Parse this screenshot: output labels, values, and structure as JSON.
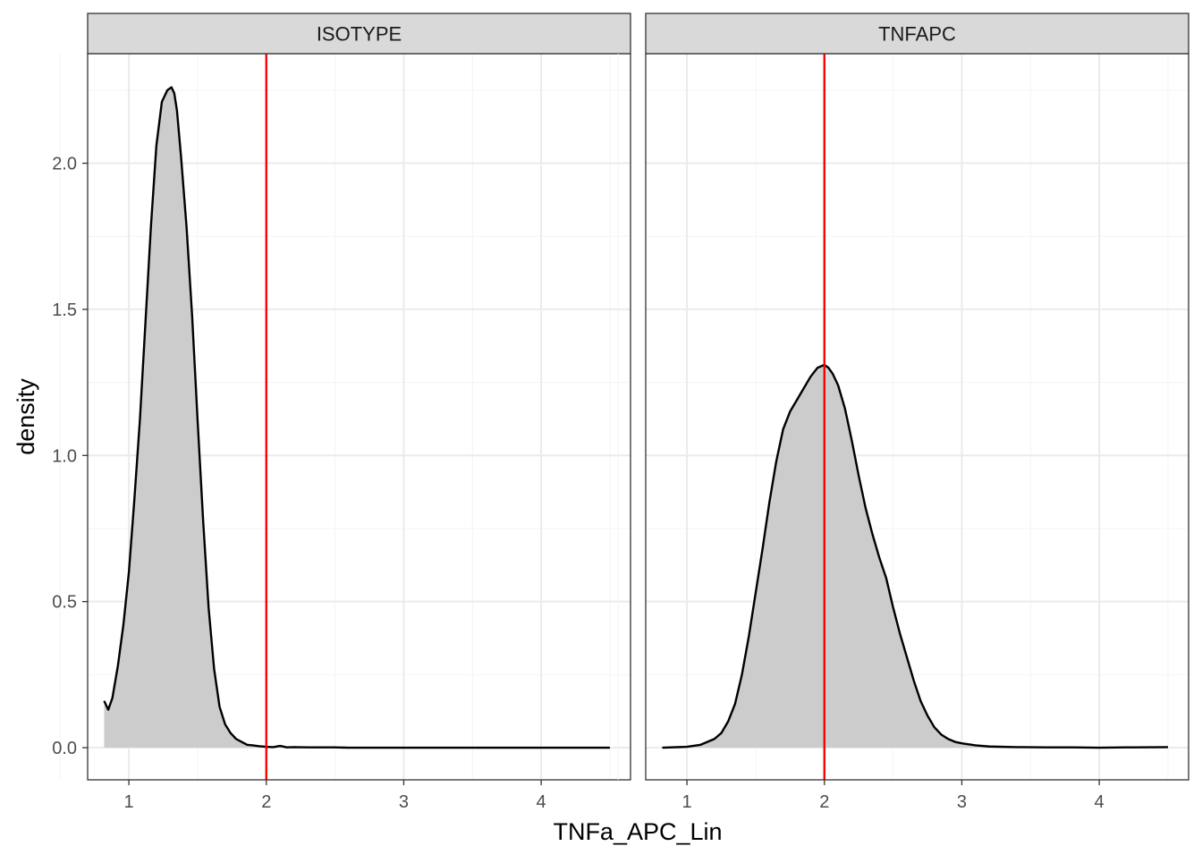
{
  "chart_data": {
    "type": "area",
    "xlabel": "TNFa_APC_Lin",
    "ylabel": "density",
    "xlim": [
      0.7,
      4.65
    ],
    "ylim": [
      -0.11,
      2.375
    ],
    "x_ticks": [
      1,
      2,
      3,
      4
    ],
    "x_tick_labels": [
      "1",
      "2",
      "3",
      "4"
    ],
    "y_ticks": [
      0.0,
      0.5,
      1.0,
      1.5,
      2.0
    ],
    "y_tick_labels": [
      "0.0",
      "0.5",
      "1.0",
      "1.5",
      "2.0"
    ],
    "grid": true,
    "theme": "bw",
    "colors": {
      "fill": "#cccccc",
      "line": "#000000",
      "vline": "#ff0000",
      "strip_bg": "#d9d9d9",
      "panel_border": "#333333",
      "grid_major": "#ebebeb",
      "grid_minor": "#f4f4f4"
    },
    "panels": [
      {
        "label": "ISOTYPE",
        "vline": 2.0,
        "x": [
          0.82,
          0.85,
          0.88,
          0.92,
          0.96,
          1.0,
          1.04,
          1.08,
          1.12,
          1.16,
          1.2,
          1.24,
          1.28,
          1.31,
          1.33,
          1.35,
          1.38,
          1.42,
          1.46,
          1.5,
          1.54,
          1.58,
          1.62,
          1.66,
          1.7,
          1.74,
          1.78,
          1.82,
          1.86,
          1.9,
          1.95,
          2.0,
          2.05,
          2.1,
          2.15,
          2.2,
          2.3,
          2.4,
          2.5,
          2.6,
          2.8,
          3.0,
          3.2,
          3.5,
          3.8,
          4.1,
          4.5
        ],
        "y": [
          0.16,
          0.13,
          0.17,
          0.28,
          0.42,
          0.6,
          0.85,
          1.12,
          1.45,
          1.78,
          2.06,
          2.21,
          2.25,
          2.26,
          2.24,
          2.18,
          2.02,
          1.78,
          1.48,
          1.12,
          0.78,
          0.48,
          0.27,
          0.14,
          0.08,
          0.05,
          0.03,
          0.02,
          0.01,
          0.008,
          0.005,
          0.003,
          0.002,
          0.006,
          0.001,
          0.002,
          0.001,
          0.001,
          0.001,
          0.0,
          0.0,
          0.0,
          0.0,
          0.0,
          0.0,
          0.0,
          0.0
        ]
      },
      {
        "label": "TNFAPC",
        "vline": 2.0,
        "x": [
          0.82,
          1.0,
          1.1,
          1.2,
          1.25,
          1.3,
          1.35,
          1.4,
          1.45,
          1.5,
          1.55,
          1.6,
          1.65,
          1.7,
          1.75,
          1.8,
          1.85,
          1.9,
          1.95,
          2.0,
          2.03,
          2.06,
          2.1,
          2.15,
          2.2,
          2.25,
          2.3,
          2.35,
          2.4,
          2.45,
          2.5,
          2.55,
          2.6,
          2.65,
          2.7,
          2.75,
          2.8,
          2.85,
          2.9,
          2.95,
          3.0,
          3.1,
          3.2,
          3.4,
          3.6,
          3.8,
          4.0,
          4.2,
          4.5
        ],
        "y": [
          0.0,
          0.003,
          0.01,
          0.03,
          0.05,
          0.09,
          0.15,
          0.25,
          0.38,
          0.53,
          0.68,
          0.84,
          0.98,
          1.09,
          1.15,
          1.19,
          1.23,
          1.27,
          1.3,
          1.31,
          1.3,
          1.28,
          1.24,
          1.16,
          1.05,
          0.93,
          0.82,
          0.73,
          0.65,
          0.58,
          0.48,
          0.39,
          0.31,
          0.23,
          0.16,
          0.11,
          0.07,
          0.045,
          0.03,
          0.02,
          0.015,
          0.008,
          0.004,
          0.002,
          0.001,
          0.001,
          0.0,
          0.001,
          0.002
        ]
      }
    ]
  }
}
